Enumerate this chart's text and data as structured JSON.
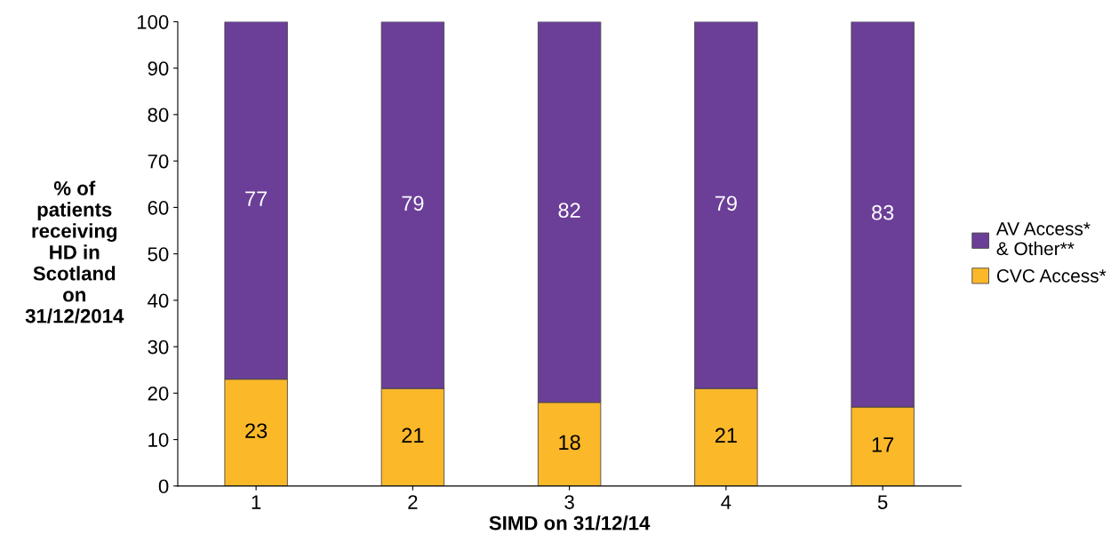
{
  "chart_data": {
    "type": "bar",
    "stacked": true,
    "categories": [
      "1",
      "2",
      "3",
      "4",
      "5"
    ],
    "xlabel": "SIMD on 31/12/14",
    "ylabel": "% of\npatients\nreceiving\nHD in\nScotland\non\n31/12/2014",
    "series": [
      {
        "name": "CVC Access*",
        "color": "#fbb829",
        "values": [
          23,
          21,
          18,
          21,
          17
        ]
      },
      {
        "name": "AV Access*\n& Other**",
        "color": "#6b3f98",
        "values": [
          77,
          79,
          82,
          79,
          83
        ]
      }
    ],
    "ylim": [
      0,
      100
    ],
    "yticks": [
      0,
      10,
      20,
      30,
      40,
      50,
      60,
      70,
      80,
      90,
      100
    ],
    "data_labels": true,
    "grid": false,
    "legend": "right"
  }
}
